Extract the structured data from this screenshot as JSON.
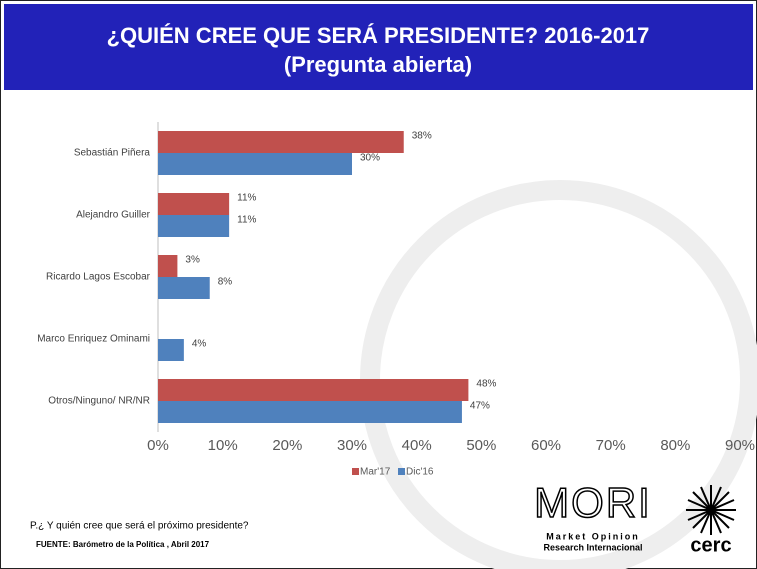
{
  "chart_data": {
    "type": "hbar",
    "title": "¿QUIÉN CREE QUE SERÁ PRESIDENTE? 2016-2017",
    "subtitle": "(Pregunta abierta)",
    "categories": [
      "Sebastián Piñera",
      "Alejandro Guiller",
      "Ricardo Lagos Escobar",
      "Marco Enriquez Ominami",
      "Otros/Ninguno/ NR/NR"
    ],
    "series": [
      {
        "name": "Mar'17",
        "color": "#c0504d",
        "values": [
          38,
          11,
          3,
          null,
          48
        ],
        "value_labels": [
          "38%",
          "11%",
          "3%",
          null,
          "48%"
        ]
      },
      {
        "name": "Dic'16",
        "color": "#4f81bd",
        "values": [
          30,
          11,
          8,
          4,
          47
        ],
        "value_labels": [
          "30%",
          "11%",
          "8%",
          "4%",
          "47%"
        ]
      }
    ],
    "xlim": [
      0,
      90
    ],
    "xticks": [
      {
        "value": 0,
        "label": "0%"
      },
      {
        "value": 10,
        "label": "10%"
      },
      {
        "value": 20,
        "label": "20%"
      },
      {
        "value": 30,
        "label": "30%"
      },
      {
        "value": 40,
        "label": "40%"
      },
      {
        "value": 50,
        "label": "50%"
      },
      {
        "value": 60,
        "label": "60%"
      },
      {
        "value": 70,
        "label": "70%"
      },
      {
        "value": 80,
        "label": "80%"
      },
      {
        "value": 90,
        "label": "90%"
      }
    ],
    "grid": false,
    "legend": "bottom"
  },
  "footnote": "P.¿ Y quién cree que será el próximo presidente?",
  "source": "FUENTE: Barómetro de la Política , Abril 2017",
  "logos": {
    "mori": "MORI",
    "mori_line1": "Market Opinion",
    "mori_line2": "Research Internacional",
    "cerc": "cerc"
  }
}
